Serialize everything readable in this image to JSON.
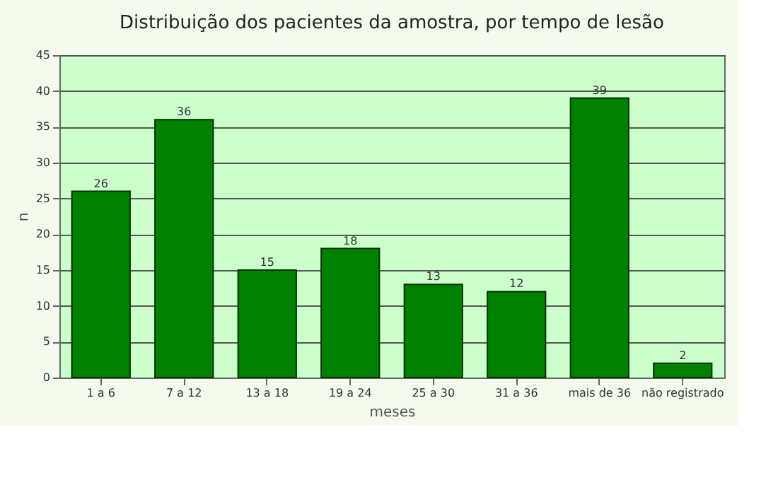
{
  "chart_data": {
    "type": "bar",
    "title": "Distribuição dos pacientes da amostra, por tempo de lesão",
    "categories": [
      "1 a 6",
      "7 a 12",
      "13 a 18",
      "19 a 24",
      "25 a 30",
      "31 a 36",
      "mais de 36",
      "não registrado"
    ],
    "values": [
      26,
      36,
      15,
      18,
      13,
      12,
      39,
      2
    ],
    "color": "#008000",
    "xlabel": "meses",
    "ylabel": "n",
    "ylim": [
      0,
      45
    ],
    "yticks": [
      0,
      5,
      10,
      15,
      20,
      25,
      30,
      35,
      40,
      45
    ],
    "grid": "y",
    "data_labels": true
  }
}
